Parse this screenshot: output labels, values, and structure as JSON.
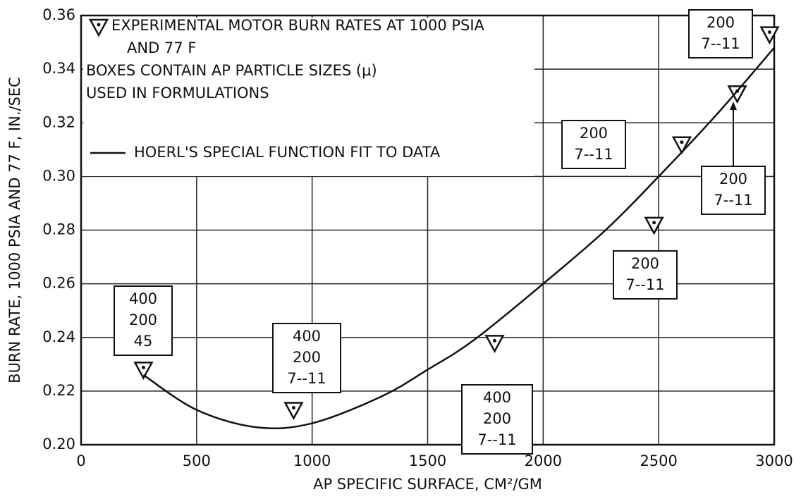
{
  "chart_data": {
    "type": "scatter",
    "x_label": "AP SPECIFIC SURFACE, CM²/GM",
    "y_label": "BURN RATE, 1000 PSIA AND 77 F, IN./SEC",
    "xlim": [
      0,
      3000
    ],
    "ylim": [
      0.2,
      0.36
    ],
    "xticks": [
      0,
      500,
      1000,
      1500,
      2000,
      2500,
      3000
    ],
    "yticks": [
      {
        "value": 0.2,
        "label": "0.20"
      },
      0.22,
      0.24,
      0.26,
      0.28,
      {
        "value": 0.3,
        "label": "0.30"
      },
      0.32,
      0.34,
      0.36
    ],
    "grid": true,
    "series": [
      {
        "name": "EXPERIMENTAL MOTOR BURN RATES AT 1000 PSIA AND 77 F",
        "type": "scatter",
        "color": "#111111",
        "x": [
          270,
          920,
          1790,
          2480,
          2600,
          2840,
          2980
        ],
        "values": [
          0.228,
          0.213,
          0.238,
          0.282,
          0.312,
          0.331,
          0.353
        ]
      },
      {
        "name": "HOERL'S SPECIAL FUNCTION FIT TO DATA",
        "type": "line",
        "color": "#111111",
        "x": [
          270,
          500,
          760,
          1000,
          1300,
          1500,
          1700,
          2000,
          2270,
          2500,
          2750,
          3000
        ],
        "values": [
          0.226,
          0.213,
          0.2065,
          0.208,
          0.218,
          0.228,
          0.239,
          0.26,
          0.28,
          0.3,
          0.323,
          0.348
        ]
      }
    ],
    "note": "BOXES CONTAIN AP PARTICLE SIZES (μ) USED IN FORMULATIONS",
    "annotations": [
      {
        "lines": [
          "400",
          "200",
          "45"
        ]
      },
      {
        "lines": [
          "400",
          "200",
          "7--11"
        ]
      },
      {
        "lines": [
          "400",
          "200",
          "7--11"
        ]
      },
      {
        "lines": [
          "200",
          "7--11"
        ]
      },
      {
        "lines": [
          "200",
          "7--11"
        ]
      },
      {
        "lines": [
          "200",
          "7--11"
        ]
      },
      {
        "lines": [
          "200",
          "7--11"
        ]
      }
    ]
  }
}
